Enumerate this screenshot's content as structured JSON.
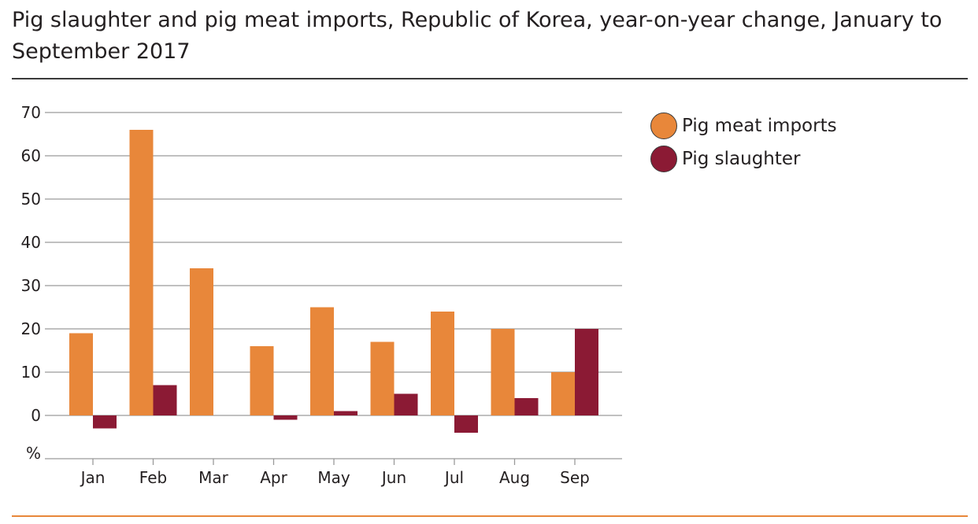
{
  "chart_data": {
    "type": "bar",
    "title": "Pig slaughter and pig meat imports, Republic of Korea, year-on-year change, January to September 2017",
    "ylabel": "%",
    "xlabel": "",
    "categories": [
      "Jan",
      "Feb",
      "Mar",
      "Apr",
      "May",
      "Jun",
      "Jul",
      "Aug",
      "Sep"
    ],
    "series": [
      {
        "name": "Pig meat imports",
        "color": "#e8873a",
        "values": [
          19,
          66,
          34,
          16,
          25,
          17,
          24,
          20,
          10
        ]
      },
      {
        "name": "Pig slaughter",
        "color": "#8b1a34",
        "values": [
          -3,
          7,
          0,
          -1,
          1,
          5,
          -4,
          4,
          20
        ]
      }
    ],
    "ylim": [
      -10,
      70
    ],
    "yticks": [
      0,
      10,
      20,
      30,
      40,
      50,
      60,
      70
    ],
    "grid": true,
    "legend_position": "top-right"
  },
  "colors": {
    "title_rule": "#3a3a3a",
    "bottom_rule": "#e8873a",
    "gridline": "#9a9a9a"
  }
}
